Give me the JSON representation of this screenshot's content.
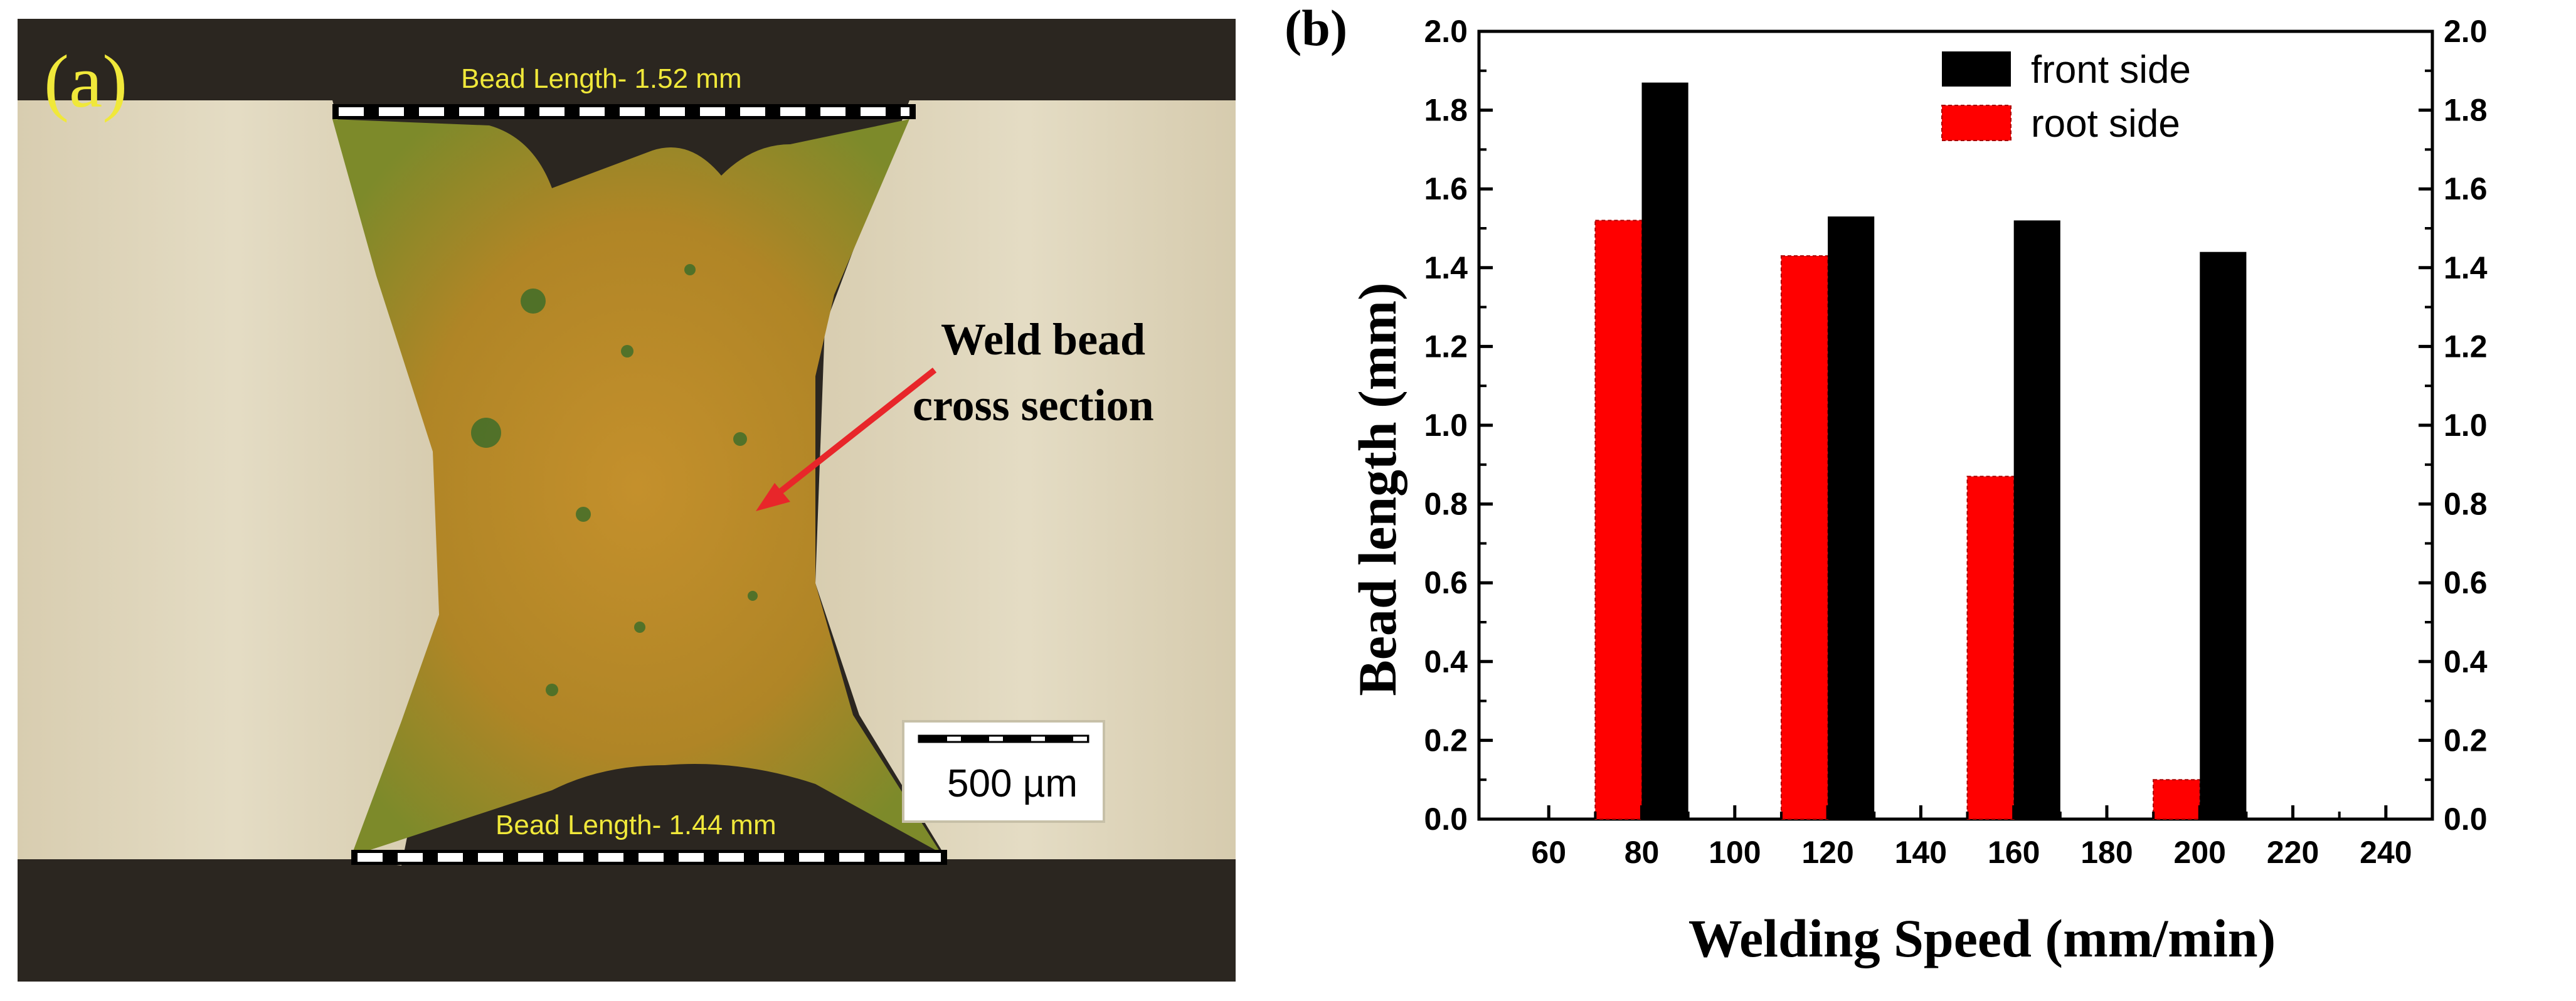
{
  "panel_a": {
    "label": "(a)",
    "top_bead_label": "Bead Length- 1.52 mm",
    "bottom_bead_label": "Bead Length- 1.44 mm",
    "annotation_line1": "Weld bead",
    "annotation_line2": "cross section",
    "scale_bar_label": "500 µm",
    "colors": {
      "metal": "#ddd2b4",
      "weld": "#b58a2a",
      "background": "#2a2520",
      "arrow": "#e8262a",
      "label_yellow": "#f0e83a"
    }
  },
  "panel_b": {
    "label": "(b)"
  },
  "chart_data": {
    "type": "bar",
    "title": "",
    "xlabel": "Welding Speed (mm/min)",
    "ylabel": "Bead length (mm)",
    "xlim": [
      45,
      250
    ],
    "ylim": [
      0,
      2.0
    ],
    "x_ticks": [
      "60",
      "80",
      "100",
      "120",
      "140",
      "160",
      "180",
      "200",
      "220",
      "240"
    ],
    "y_ticks": [
      "0.0",
      "0.2",
      "0.4",
      "0.6",
      "0.8",
      "1.0",
      "1.2",
      "1.4",
      "1.6",
      "1.8",
      "2.0"
    ],
    "categories": [
      80,
      120,
      160,
      200
    ],
    "series": [
      {
        "name": "front side",
        "color": "#000000",
        "values": [
          1.87,
          1.53,
          1.52,
          1.44
        ]
      },
      {
        "name": "root side",
        "color": "#ff0000",
        "values": [
          1.52,
          1.43,
          0.87,
          0.1
        ]
      }
    ],
    "legend": {
      "position": "top-right",
      "entries": [
        "front side",
        "root side"
      ]
    }
  }
}
